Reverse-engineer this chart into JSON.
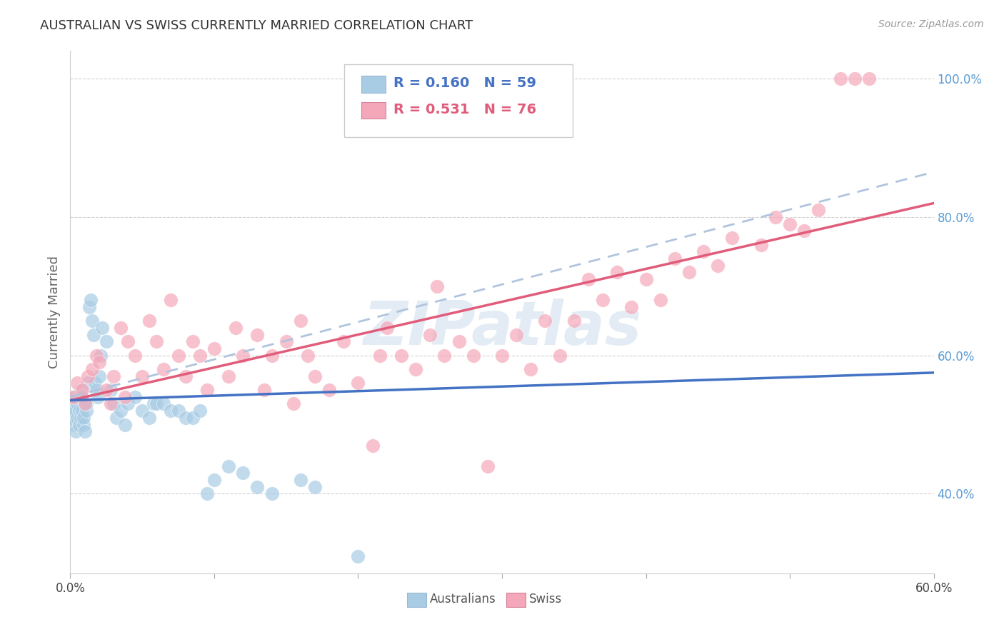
{
  "title": "AUSTRALIAN VS SWISS CURRENTLY MARRIED CORRELATION CHART",
  "source": "Source: ZipAtlas.com",
  "ylabel": "Currently Married",
  "ytick_labels": [
    "40.0%",
    "60.0%",
    "80.0%",
    "100.0%"
  ],
  "ytick_values": [
    0.4,
    0.6,
    0.8,
    1.0
  ],
  "watermark": "ZIPatlas",
  "legend_blue_r": "R = 0.160",
  "legend_blue_n": "N = 59",
  "legend_pink_r": "R = 0.531",
  "legend_pink_n": "N = 76",
  "blue_color": "#a8cce4",
  "pink_color": "#f4a7b9",
  "blue_line_color": "#4472c4",
  "pink_line_color": "#e05c7a",
  "dashed_line_color": "#b0c4de",
  "xlim": [
    0.0,
    0.6
  ],
  "ylim": [
    0.285,
    1.04
  ],
  "aus_x": [
    0.001,
    0.002,
    0.002,
    0.003,
    0.003,
    0.004,
    0.004,
    0.005,
    0.005,
    0.006,
    0.006,
    0.007,
    0.007,
    0.008,
    0.008,
    0.009,
    0.009,
    0.01,
    0.01,
    0.011,
    0.011,
    0.012,
    0.013,
    0.014,
    0.015,
    0.016,
    0.017,
    0.018,
    0.019,
    0.02,
    0.021,
    0.022,
    0.025,
    0.028,
    0.03,
    0.032,
    0.035,
    0.038,
    0.04,
    0.045,
    0.05,
    0.055,
    0.058,
    0.06,
    0.065,
    0.07,
    0.075,
    0.08,
    0.085,
    0.09,
    0.095,
    0.1,
    0.11,
    0.12,
    0.13,
    0.14,
    0.16,
    0.17,
    0.2
  ],
  "aus_y": [
    0.51,
    0.52,
    0.53,
    0.5,
    0.54,
    0.49,
    0.52,
    0.51,
    0.53,
    0.5,
    0.52,
    0.51,
    0.55,
    0.54,
    0.52,
    0.5,
    0.51,
    0.53,
    0.49,
    0.52,
    0.53,
    0.56,
    0.67,
    0.68,
    0.65,
    0.63,
    0.56,
    0.55,
    0.54,
    0.57,
    0.6,
    0.64,
    0.62,
    0.55,
    0.53,
    0.51,
    0.52,
    0.5,
    0.53,
    0.54,
    0.52,
    0.51,
    0.53,
    0.53,
    0.53,
    0.52,
    0.52,
    0.51,
    0.51,
    0.52,
    0.4,
    0.42,
    0.44,
    0.43,
    0.41,
    0.4,
    0.42,
    0.41,
    0.31
  ],
  "swiss_x": [
    0.002,
    0.005,
    0.008,
    0.01,
    0.012,
    0.015,
    0.018,
    0.02,
    0.025,
    0.028,
    0.03,
    0.035,
    0.038,
    0.04,
    0.045,
    0.05,
    0.055,
    0.06,
    0.065,
    0.07,
    0.075,
    0.08,
    0.085,
    0.09,
    0.095,
    0.1,
    0.11,
    0.115,
    0.12,
    0.13,
    0.135,
    0.14,
    0.15,
    0.155,
    0.16,
    0.165,
    0.17,
    0.18,
    0.19,
    0.2,
    0.21,
    0.215,
    0.22,
    0.23,
    0.24,
    0.25,
    0.255,
    0.26,
    0.27,
    0.28,
    0.29,
    0.3,
    0.31,
    0.32,
    0.33,
    0.34,
    0.35,
    0.36,
    0.37,
    0.38,
    0.39,
    0.4,
    0.41,
    0.42,
    0.43,
    0.44,
    0.45,
    0.46,
    0.48,
    0.49,
    0.5,
    0.51,
    0.52,
    0.535,
    0.545,
    0.555
  ],
  "swiss_y": [
    0.54,
    0.56,
    0.55,
    0.53,
    0.57,
    0.58,
    0.6,
    0.59,
    0.55,
    0.53,
    0.57,
    0.64,
    0.54,
    0.62,
    0.6,
    0.57,
    0.65,
    0.62,
    0.58,
    0.68,
    0.6,
    0.57,
    0.62,
    0.6,
    0.55,
    0.61,
    0.57,
    0.64,
    0.6,
    0.63,
    0.55,
    0.6,
    0.62,
    0.53,
    0.65,
    0.6,
    0.57,
    0.55,
    0.62,
    0.56,
    0.47,
    0.6,
    0.64,
    0.6,
    0.58,
    0.63,
    0.7,
    0.6,
    0.62,
    0.6,
    0.44,
    0.6,
    0.63,
    0.58,
    0.65,
    0.6,
    0.65,
    0.71,
    0.68,
    0.72,
    0.67,
    0.71,
    0.68,
    0.74,
    0.72,
    0.75,
    0.73,
    0.77,
    0.76,
    0.8,
    0.79,
    0.78,
    0.81,
    1.0,
    1.0,
    1.0
  ],
  "blue_line_x": [
    0.0,
    0.6
  ],
  "blue_line_y": [
    0.535,
    0.575
  ],
  "pink_line_x": [
    0.0,
    0.6
  ],
  "pink_line_y": [
    0.535,
    0.82
  ],
  "dashed_line_x": [
    0.0,
    0.6
  ],
  "dashed_line_y": [
    0.54,
    0.865
  ]
}
